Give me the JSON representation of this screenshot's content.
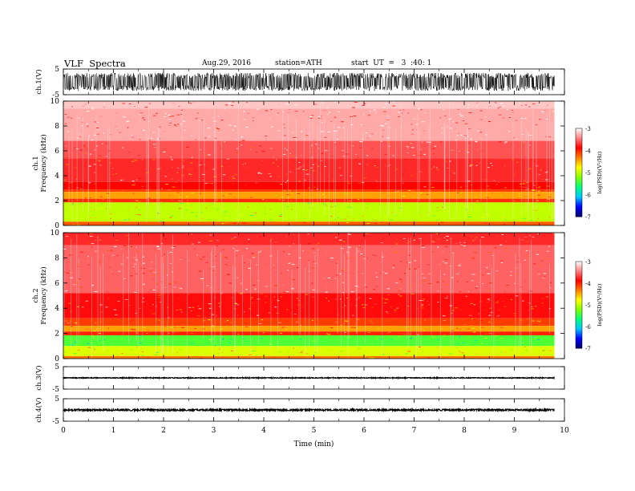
{
  "header": {
    "title": "VLF  Spectra",
    "date": "Aug.29, 2016",
    "station": "station=ATH",
    "start": "start  UT  =   3  :40: 1"
  },
  "chart_data": {
    "type": "heatmap",
    "x": {
      "label": "Time  (min)",
      "range": [
        0,
        10
      ],
      "ticks": [
        "0",
        "1",
        "2",
        "3",
        "4",
        "5",
        "6",
        "7",
        "8",
        "9",
        "10"
      ],
      "data_end": 9.8
    },
    "panels": [
      {
        "id": "ch1-waveform",
        "kind": "waveform",
        "ylabel": "ch.1(V)",
        "yrange": [
          -5,
          5
        ],
        "yticks": [
          "5",
          "-5"
        ],
        "amplitude": 3.5
      },
      {
        "id": "ch1-spectrogram",
        "kind": "spectrogram",
        "ylabel_line1": "ch.1",
        "ylabel_line2": "Frequency  (kHz)",
        "yrange": [
          0,
          10
        ],
        "yticks": [
          "0",
          "2",
          "4",
          "6",
          "8",
          "10"
        ],
        "colorbar": {
          "label": "log(PSD)(V²/Hz)",
          "range": [
            -7,
            -3
          ],
          "ticks": [
            "-3",
            "-4",
            "-5",
            "-6",
            "-7"
          ]
        },
        "bands": [
          {
            "from": 9.4,
            "to": 10,
            "level": -3.2
          },
          {
            "from": 6.8,
            "to": 9.4,
            "level": -3.3
          },
          {
            "from": 5.4,
            "to": 6.8,
            "level": -3.6
          },
          {
            "from": 3.5,
            "to": 5.4,
            "level": -3.75
          },
          {
            "from": 2.9,
            "to": 3.5,
            "level": -3.9
          },
          {
            "from": 2.7,
            "to": 2.9,
            "level": -4.1
          },
          {
            "from": 2.15,
            "to": 2.7,
            "level": -4.45
          },
          {
            "from": 1.85,
            "to": 2.15,
            "level": -4.05
          },
          {
            "from": 0.3,
            "to": 1.85,
            "level": -5.0
          },
          {
            "from": 0,
            "to": 0.3,
            "level": -4.2
          }
        ]
      },
      {
        "id": "ch2-spectrogram",
        "kind": "spectrogram",
        "ylabel_line1": "ch.2",
        "ylabel_line2": "Frequency  (kHz)",
        "yrange": [
          0,
          10
        ],
        "yticks": [
          "0",
          "2",
          "4",
          "6",
          "8",
          "10"
        ],
        "colorbar": {
          "label": "log(PSD)(V²/Hz)",
          "range": [
            -7,
            -3
          ],
          "ticks": [
            "-3",
            "-4",
            "-5",
            "-6",
            "-7"
          ]
        },
        "bands": [
          {
            "from": 9.0,
            "to": 10,
            "level": -3.75
          },
          {
            "from": 5.2,
            "to": 9.0,
            "level": -3.55
          },
          {
            "from": 3.2,
            "to": 5.2,
            "level": -3.85
          },
          {
            "from": 2.6,
            "to": 3.2,
            "level": -4.1
          },
          {
            "from": 2.15,
            "to": 2.6,
            "level": -4.45
          },
          {
            "from": 1.85,
            "to": 2.15,
            "level": -4.0
          },
          {
            "from": 1.0,
            "to": 1.85,
            "level": -5.4
          },
          {
            "from": 0.2,
            "to": 1.0,
            "level": -4.9
          },
          {
            "from": 0,
            "to": 0.2,
            "level": -4.3
          }
        ]
      },
      {
        "id": "ch3-waveform",
        "kind": "waveform",
        "ylabel": "ch.3(V)",
        "yrange": [
          -5,
          5
        ],
        "yticks": [
          "5",
          "-5"
        ],
        "amplitude": 0.15
      },
      {
        "id": "ch4-waveform",
        "kind": "waveform",
        "ylabel": "ch.4(V)",
        "yrange": [
          -5,
          5
        ],
        "yticks": [
          "5",
          "-5"
        ],
        "amplitude": 0.35
      }
    ],
    "colors": {
      "scale": [
        "#000070",
        "#0000ff",
        "#00c8ff",
        "#00ff80",
        "#80ff00",
        "#ffff00",
        "#ff8000",
        "#ff0000",
        "#ff8080",
        "#ffffff"
      ]
    }
  }
}
